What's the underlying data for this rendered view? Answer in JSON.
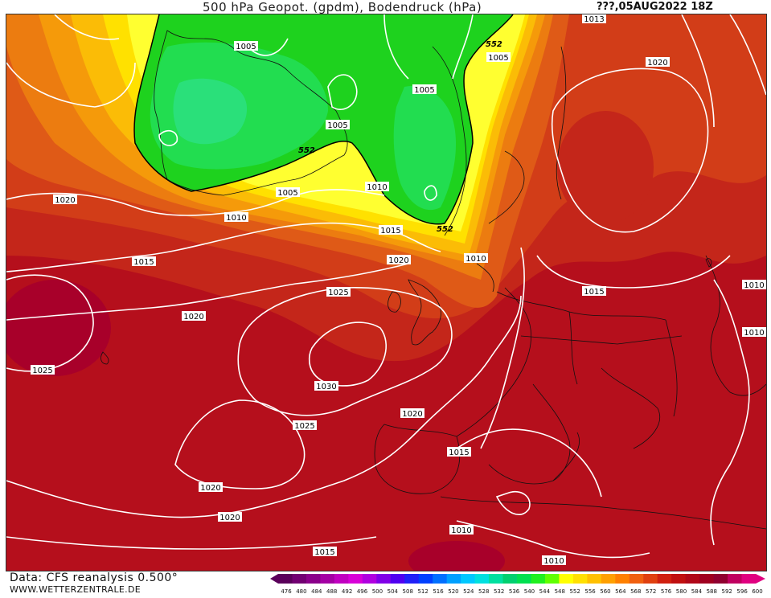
{
  "header": {
    "title": "500 hPa Geopot. (gpdm), Bodendruck (hPa)",
    "date": "???,05AUG2022 18Z"
  },
  "footer": {
    "data_source": "Data: CFS reanalysis 0.500°",
    "website": "WWW.WETTERZENTRALE.DE"
  },
  "legend": {
    "ticks": [
      "476",
      "480",
      "484",
      "488",
      "492",
      "496",
      "500",
      "504",
      "508",
      "512",
      "516",
      "520",
      "524",
      "528",
      "532",
      "536",
      "540",
      "544",
      "548",
      "552",
      "556",
      "560",
      "564",
      "568",
      "572",
      "576",
      "580",
      "584",
      "588",
      "592",
      "596",
      "600"
    ],
    "colors": [
      "#5a005a",
      "#720072",
      "#8a008a",
      "#a400a4",
      "#c000c0",
      "#d800d8",
      "#b000e0",
      "#8000e8",
      "#5000f0",
      "#2020f8",
      "#0040ff",
      "#0070ff",
      "#00a0ff",
      "#00c8ff",
      "#00e0e0",
      "#00e0a0",
      "#00d070",
      "#00e050",
      "#20f020",
      "#60ff00",
      "#ffff00",
      "#ffe000",
      "#ffc000",
      "#ffa000",
      "#ff8000",
      "#f06010",
      "#e04010",
      "#d02010",
      "#c01010",
      "#b00818",
      "#a00020",
      "#900030",
      "#c00060",
      "#e00080"
    ]
  },
  "isobars": [
    {
      "value": "1005"
    },
    {
      "value": "1005"
    },
    {
      "value": "1005"
    },
    {
      "value": "1005"
    },
    {
      "value": "1005"
    },
    {
      "value": "1010"
    },
    {
      "value": "1010"
    },
    {
      "value": "1010"
    },
    {
      "value": "1010"
    },
    {
      "value": "1010"
    },
    {
      "value": "1013"
    },
    {
      "value": "1015"
    },
    {
      "value": "1015"
    },
    {
      "value": "1015"
    },
    {
      "value": "1015"
    },
    {
      "value": "1015"
    },
    {
      "value": "1020"
    },
    {
      "value": "1020"
    },
    {
      "value": "1020"
    },
    {
      "value": "1020"
    },
    {
      "value": "1020"
    },
    {
      "value": "1020"
    },
    {
      "value": "1020"
    },
    {
      "value": "1025"
    },
    {
      "value": "1025"
    },
    {
      "value": "1025"
    },
    {
      "value": "1030"
    },
    {
      "value": "1010"
    },
    {
      "value": "1010"
    }
  ],
  "geopotential_labels": [
    {
      "value": "552"
    },
    {
      "value": "552"
    },
    {
      "value": "552"
    }
  ]
}
